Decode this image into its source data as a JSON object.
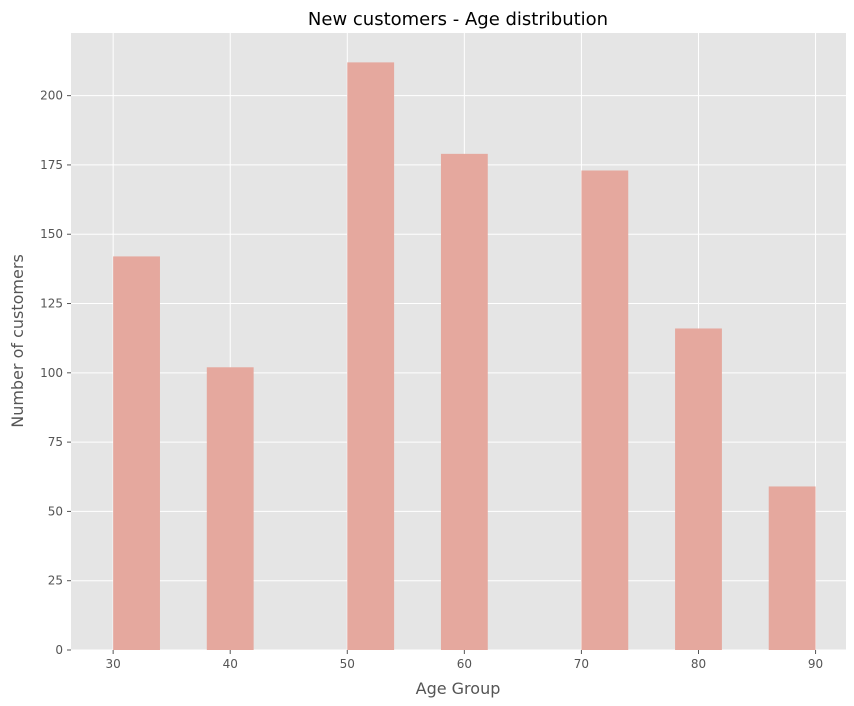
{
  "chart_data": {
    "type": "bar",
    "title": "New customers - Age distribution",
    "xlabel": "Age Group",
    "ylabel": "Number of customers",
    "x_ticks": [
      30,
      40,
      50,
      60,
      70,
      80,
      90
    ],
    "y_ticks": [
      0,
      25,
      50,
      75,
      100,
      125,
      150,
      175,
      200
    ],
    "xlim": [
      26.4,
      92.6
    ],
    "ylim": [
      0,
      222.6
    ],
    "grid": true,
    "bars": [
      {
        "x_start": 30,
        "x_end": 34,
        "value": 142
      },
      {
        "x_start": 38,
        "x_end": 42,
        "value": 102
      },
      {
        "x_start": 50,
        "x_end": 54,
        "value": 212
      },
      {
        "x_start": 58,
        "x_end": 62,
        "value": 179
      },
      {
        "x_start": 70,
        "x_end": 74,
        "value": 173
      },
      {
        "x_start": 78,
        "x_end": 82,
        "value": 116
      },
      {
        "x_start": 86,
        "x_end": 90,
        "value": 59
      }
    ],
    "colors": {
      "bar": "#e5a89e",
      "plot_background": "#e5e5e5",
      "grid": "#ffffff"
    }
  }
}
